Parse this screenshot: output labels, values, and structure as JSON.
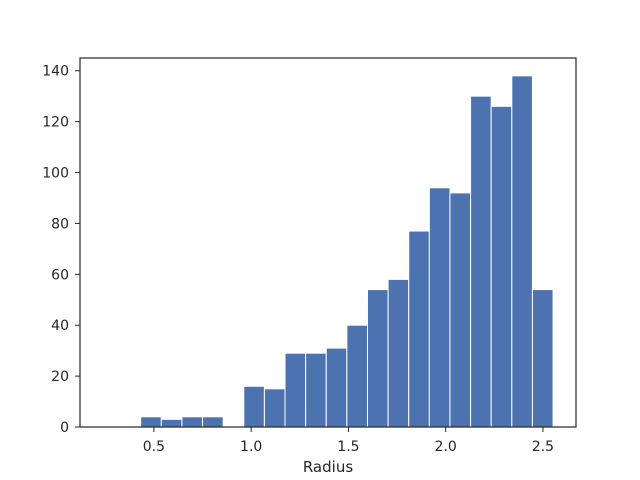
{
  "chart_data": {
    "type": "bar",
    "title": "",
    "xlabel": "Radius",
    "ylabel": "",
    "xlim": [
      0.12,
      2.67
    ],
    "ylim": [
      0,
      145
    ],
    "xticks": [
      0.5,
      1.0,
      1.5,
      2.0,
      2.5
    ],
    "xtick_labels": [
      "0.5",
      "1.0",
      "1.5",
      "2.0",
      "2.5"
    ],
    "yticks": [
      0,
      20,
      40,
      60,
      80,
      100,
      120,
      140
    ],
    "ytick_labels": [
      "0",
      "20",
      "40",
      "60",
      "80",
      "100",
      "120",
      "140"
    ],
    "bin_edges": [
      0.22,
      0.326,
      0.432,
      0.538,
      0.644,
      0.75,
      0.856,
      0.962,
      1.068,
      1.174,
      1.28,
      1.386,
      1.492,
      1.598,
      1.704,
      1.81,
      1.916,
      2.022,
      2.128,
      2.234,
      2.34,
      2.446,
      2.552
    ],
    "values": [
      0,
      0,
      4,
      3,
      4,
      4,
      0,
      16,
      15,
      29,
      29,
      31,
      40,
      54,
      58,
      77,
      94,
      92,
      130,
      126,
      138,
      54
    ],
    "bar_color": "#4c72b0",
    "bar_edge_color": "#ffffff",
    "grid": false,
    "legend": "none"
  }
}
